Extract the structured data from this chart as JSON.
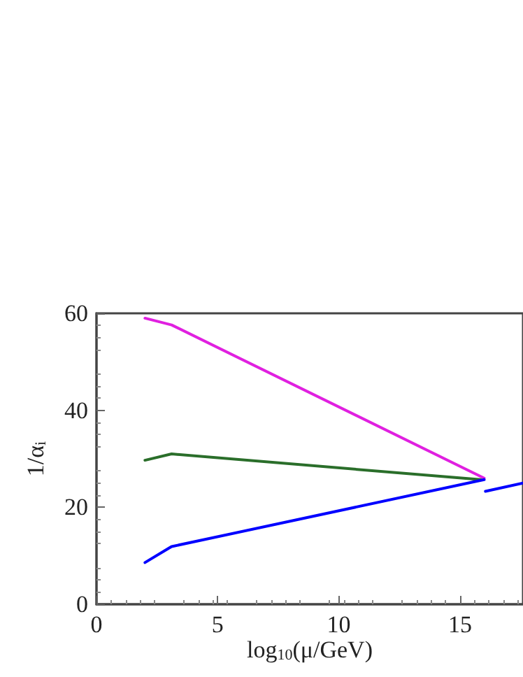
{
  "chart_data": {
    "type": "line",
    "xlabel": "log$_{10}$(μ/GeV)",
    "ylabel": "1/α$_{i}$",
    "xlim": [
      0,
      17.6
    ],
    "xticks": [
      0,
      5,
      10,
      15
    ],
    "ylim": [
      0,
      60
    ],
    "yticks": [
      0,
      20,
      40,
      60
    ],
    "grid": false,
    "marker": "none",
    "line_style": "solid",
    "series": [
      {
        "color": "#e020e0",
        "x": [
          2,
          3.1,
          16
        ],
        "values": [
          59.0,
          57.6,
          26.0
        ]
      },
      {
        "color": "#2a6e2a",
        "x": [
          2,
          3.1,
          15.85
        ],
        "values": [
          29.7,
          31.0,
          25.7
        ]
      },
      {
        "color": "#0000ff",
        "x": [
          2,
          3.0,
          3.1,
          16
        ],
        "values": [
          8.6,
          11.6,
          11.9,
          25.7
        ]
      },
      {
        "color": "#0000ff",
        "x": [
          16.05,
          17.6
        ],
        "values": [
          23.3,
          25.0
        ]
      }
    ]
  }
}
